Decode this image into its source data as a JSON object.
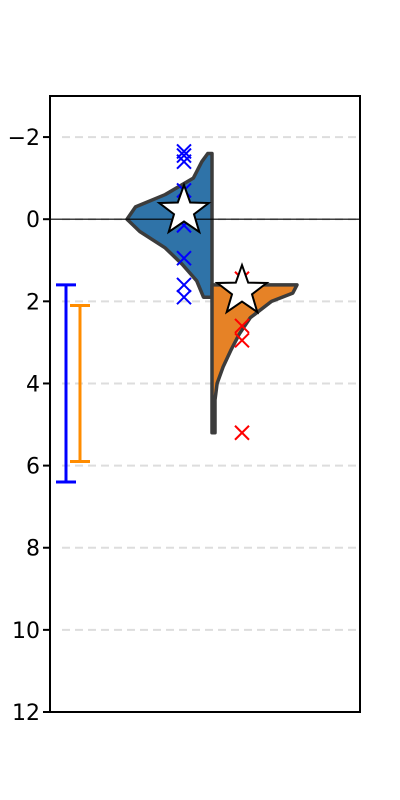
{
  "chart_data": {
    "type": "violin",
    "title": "",
    "xlabel": "",
    "ylabel": "",
    "y_inverted": true,
    "ylim": [
      12,
      -3
    ],
    "yticks": [
      -2,
      0,
      2,
      4,
      6,
      8,
      10,
      12
    ],
    "ytick_labels": [
      "−2",
      "0",
      "2",
      "4",
      "6",
      "8",
      "10",
      "12"
    ],
    "grid": "horizontal dashed",
    "reference_line_y": 0,
    "series": [
      {
        "side": "left",
        "fill_color": "#2f73a8",
        "marker_color": "#0000ff",
        "range": [
          -1.6,
          1.9
        ],
        "mean": -0.2,
        "points": [
          -1.65,
          -1.55,
          -1.4,
          -0.7,
          -0.25,
          0.15,
          0.95,
          1.6,
          1.9
        ],
        "profile": [
          [
            -1.6,
            0.05
          ],
          [
            -1.4,
            0.12
          ],
          [
            -1.0,
            0.22
          ],
          [
            -0.6,
            0.55
          ],
          [
            -0.3,
            0.9
          ],
          [
            0.0,
            1.0
          ],
          [
            0.3,
            0.85
          ],
          [
            0.7,
            0.55
          ],
          [
            1.1,
            0.35
          ],
          [
            1.5,
            0.18
          ],
          [
            1.9,
            0.1
          ]
        ]
      },
      {
        "side": "right",
        "fill_color": "#e68226",
        "marker_color": "#ff0000",
        "range": [
          1.6,
          5.2
        ],
        "mean": 1.75,
        "points": [
          1.45,
          2.6,
          2.95,
          5.2
        ],
        "profile": [
          [
            1.6,
            1.0
          ],
          [
            1.8,
            0.95
          ],
          [
            2.0,
            0.7
          ],
          [
            2.4,
            0.45
          ],
          [
            2.8,
            0.32
          ],
          [
            3.2,
            0.22
          ],
          [
            3.6,
            0.13
          ],
          [
            4.0,
            0.06
          ],
          [
            4.4,
            0.03
          ],
          [
            4.8,
            0.03
          ],
          [
            5.2,
            0.03
          ]
        ]
      }
    ],
    "error_bars": [
      {
        "color": "#0000ff",
        "low": 1.6,
        "high": 6.4
      },
      {
        "color": "#ff8c00",
        "low": 2.1,
        "high": 5.9
      }
    ]
  }
}
